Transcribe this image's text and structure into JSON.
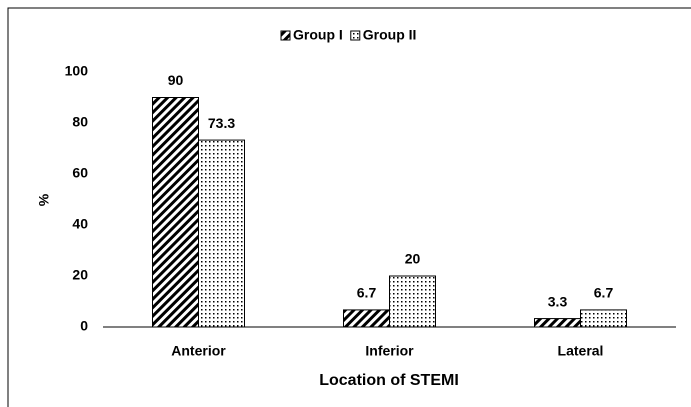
{
  "chart_data": {
    "type": "bar",
    "categories": [
      "Anterior",
      "Inferior",
      "Lateral"
    ],
    "series": [
      {
        "name": "Group I",
        "color": "#000000",
        "pattern": "diagonal",
        "values": [
          90,
          6.7,
          3.3
        ]
      },
      {
        "name": "Group II",
        "color": "#000000",
        "pattern": "dots",
        "values": [
          73.3,
          20,
          6.7
        ]
      }
    ],
    "ylabel": "%",
    "xlabel": "Location of STEMI",
    "ylim": [
      0,
      100
    ],
    "yticks": [
      0,
      20,
      40,
      60,
      80,
      100
    ],
    "grid": false,
    "legend": "top"
  }
}
